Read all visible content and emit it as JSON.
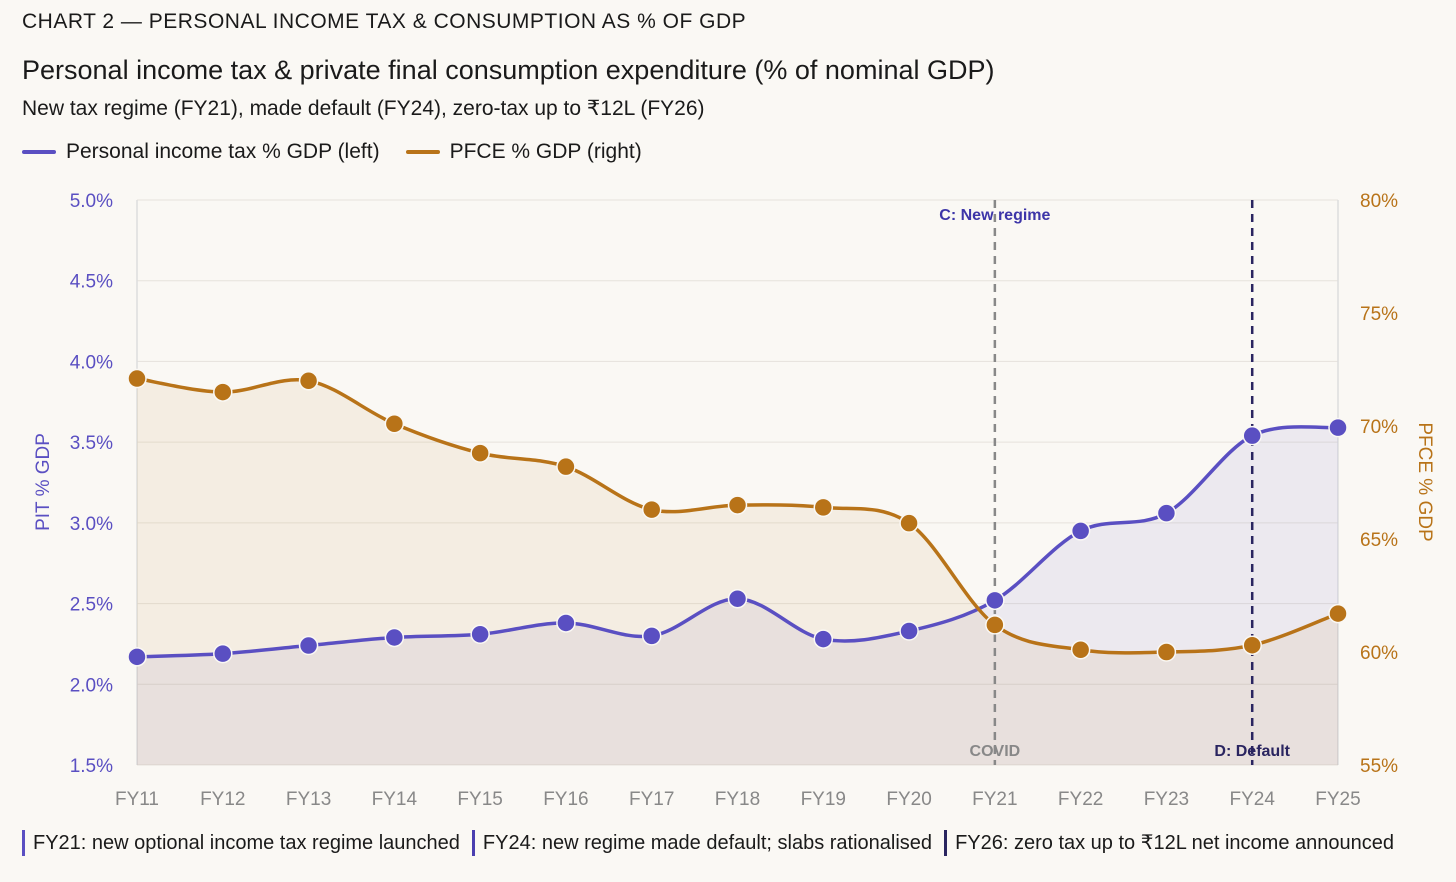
{
  "kicker": "CHART 2 — PERSONAL INCOME TAX & CONSUMPTION AS % OF GDP",
  "notes": [
    {
      "text": "FY21: new optional income tax regime launched",
      "color": "#5a4fc2"
    },
    {
      "text": "FY24: new regime made default; slabs rationalised",
      "color": "#4a3fb0"
    },
    {
      "text": "FY26: zero tax up to ₹12L net income announced",
      "color": "#2a2560"
    }
  ],
  "chart_data": {
    "type": "line",
    "title": "Personal income tax & private final consumption expenditure (% of nominal GDP)",
    "subtitle": "New tax regime (FY21), made default (FY24), zero-tax up to ₹12L (FY26)",
    "categories": [
      "FY11",
      "FY12",
      "FY13",
      "FY14",
      "FY15",
      "FY16",
      "FY17",
      "FY18",
      "FY19",
      "FY20",
      "FY21",
      "FY22",
      "FY23",
      "FY24",
      "FY25"
    ],
    "series": [
      {
        "name": "Personal income tax % GDP (left)",
        "axis": "left",
        "color": "#5a4fc2",
        "values": [
          2.17,
          2.19,
          2.24,
          2.29,
          2.31,
          2.38,
          2.3,
          2.53,
          2.28,
          2.33,
          2.52,
          2.95,
          3.06,
          3.54,
          3.59
        ]
      },
      {
        "name": "PFCE % GDP (right)",
        "axis": "right",
        "color": "#b87318",
        "values": [
          72.1,
          71.5,
          72.0,
          70.1,
          68.8,
          68.2,
          66.3,
          66.5,
          66.4,
          65.7,
          61.2,
          60.1,
          60.0,
          60.3,
          61.7
        ]
      }
    ],
    "ylabel_left": "PIT % GDP",
    "ylim_left": [
      1.5,
      5.0
    ],
    "yticks_left": [
      "1.5%",
      "2.0%",
      "2.5%",
      "3.0%",
      "3.5%",
      "4.0%",
      "4.5%",
      "5.0%"
    ],
    "ylabel_right": "PFCE % GDP",
    "ylim_right": [
      55,
      80
    ],
    "yticks_right": [
      "55%",
      "60%",
      "65%",
      "70%",
      "75%",
      "80%"
    ],
    "annotations": [
      {
        "x": "FY21",
        "label_top": "C: New regime",
        "label_bottom": "COVID",
        "color": "#888888"
      },
      {
        "x": "FY24",
        "label_bottom": "D: Default",
        "color": "#2a2560"
      }
    ],
    "grid": true,
    "legend": "top-left"
  }
}
